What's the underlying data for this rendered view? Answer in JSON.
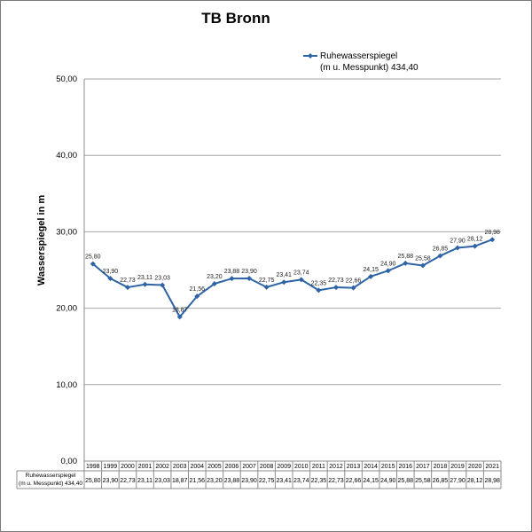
{
  "chart_data": {
    "type": "line",
    "title": "TB Bronn",
    "ylabel": "Wasserspiegel in m",
    "xlabel": "",
    "ylim": [
      0,
      50
    ],
    "yticks": [
      "0,00",
      "10,00",
      "20,00",
      "30,00",
      "40,00",
      "50,00"
    ],
    "ytick_values": [
      0,
      10,
      20,
      30,
      40,
      50
    ],
    "grid": "horizontal",
    "legend_position": "top-right",
    "line_color": "#2E64A6",
    "categories": [
      "1998",
      "1999",
      "2000",
      "2001",
      "2002",
      "2003",
      "2004",
      "2005",
      "2006",
      "2007",
      "2008",
      "2009",
      "2010",
      "2011",
      "2012",
      "2013",
      "2014",
      "2015",
      "2016",
      "2017",
      "2018",
      "2019",
      "2020",
      "2021"
    ],
    "series": [
      {
        "name_line1": "Ruhewasserspiegel",
        "name_line2": "(m u. Messpunkt) 434,40",
        "values": [
          25.8,
          23.9,
          22.73,
          23.11,
          23.03,
          18.87,
          21.56,
          23.2,
          23.88,
          23.9,
          22.75,
          23.41,
          23.74,
          22.35,
          22.73,
          22.66,
          24.15,
          24.9,
          25.88,
          25.58,
          26.85,
          27.9,
          28.12,
          28.98
        ],
        "labels": [
          "25,80",
          "23,90",
          "22,73",
          "23,11",
          "23,03",
          "18,87",
          "21,56",
          "23,20",
          "23,88",
          "23,90",
          "22,75",
          "23,41",
          "23,74",
          "22,35",
          "22,73",
          "22,66",
          "24,15",
          "24,90",
          "25,88",
          "25,58",
          "26,85",
          "27,90",
          "28,12",
          "28,98"
        ]
      }
    ],
    "table": {
      "row_label_line1": "Ruhewasserspiegel",
      "row_label_line2": "(m u. Messpunkt) 434,40"
    }
  }
}
